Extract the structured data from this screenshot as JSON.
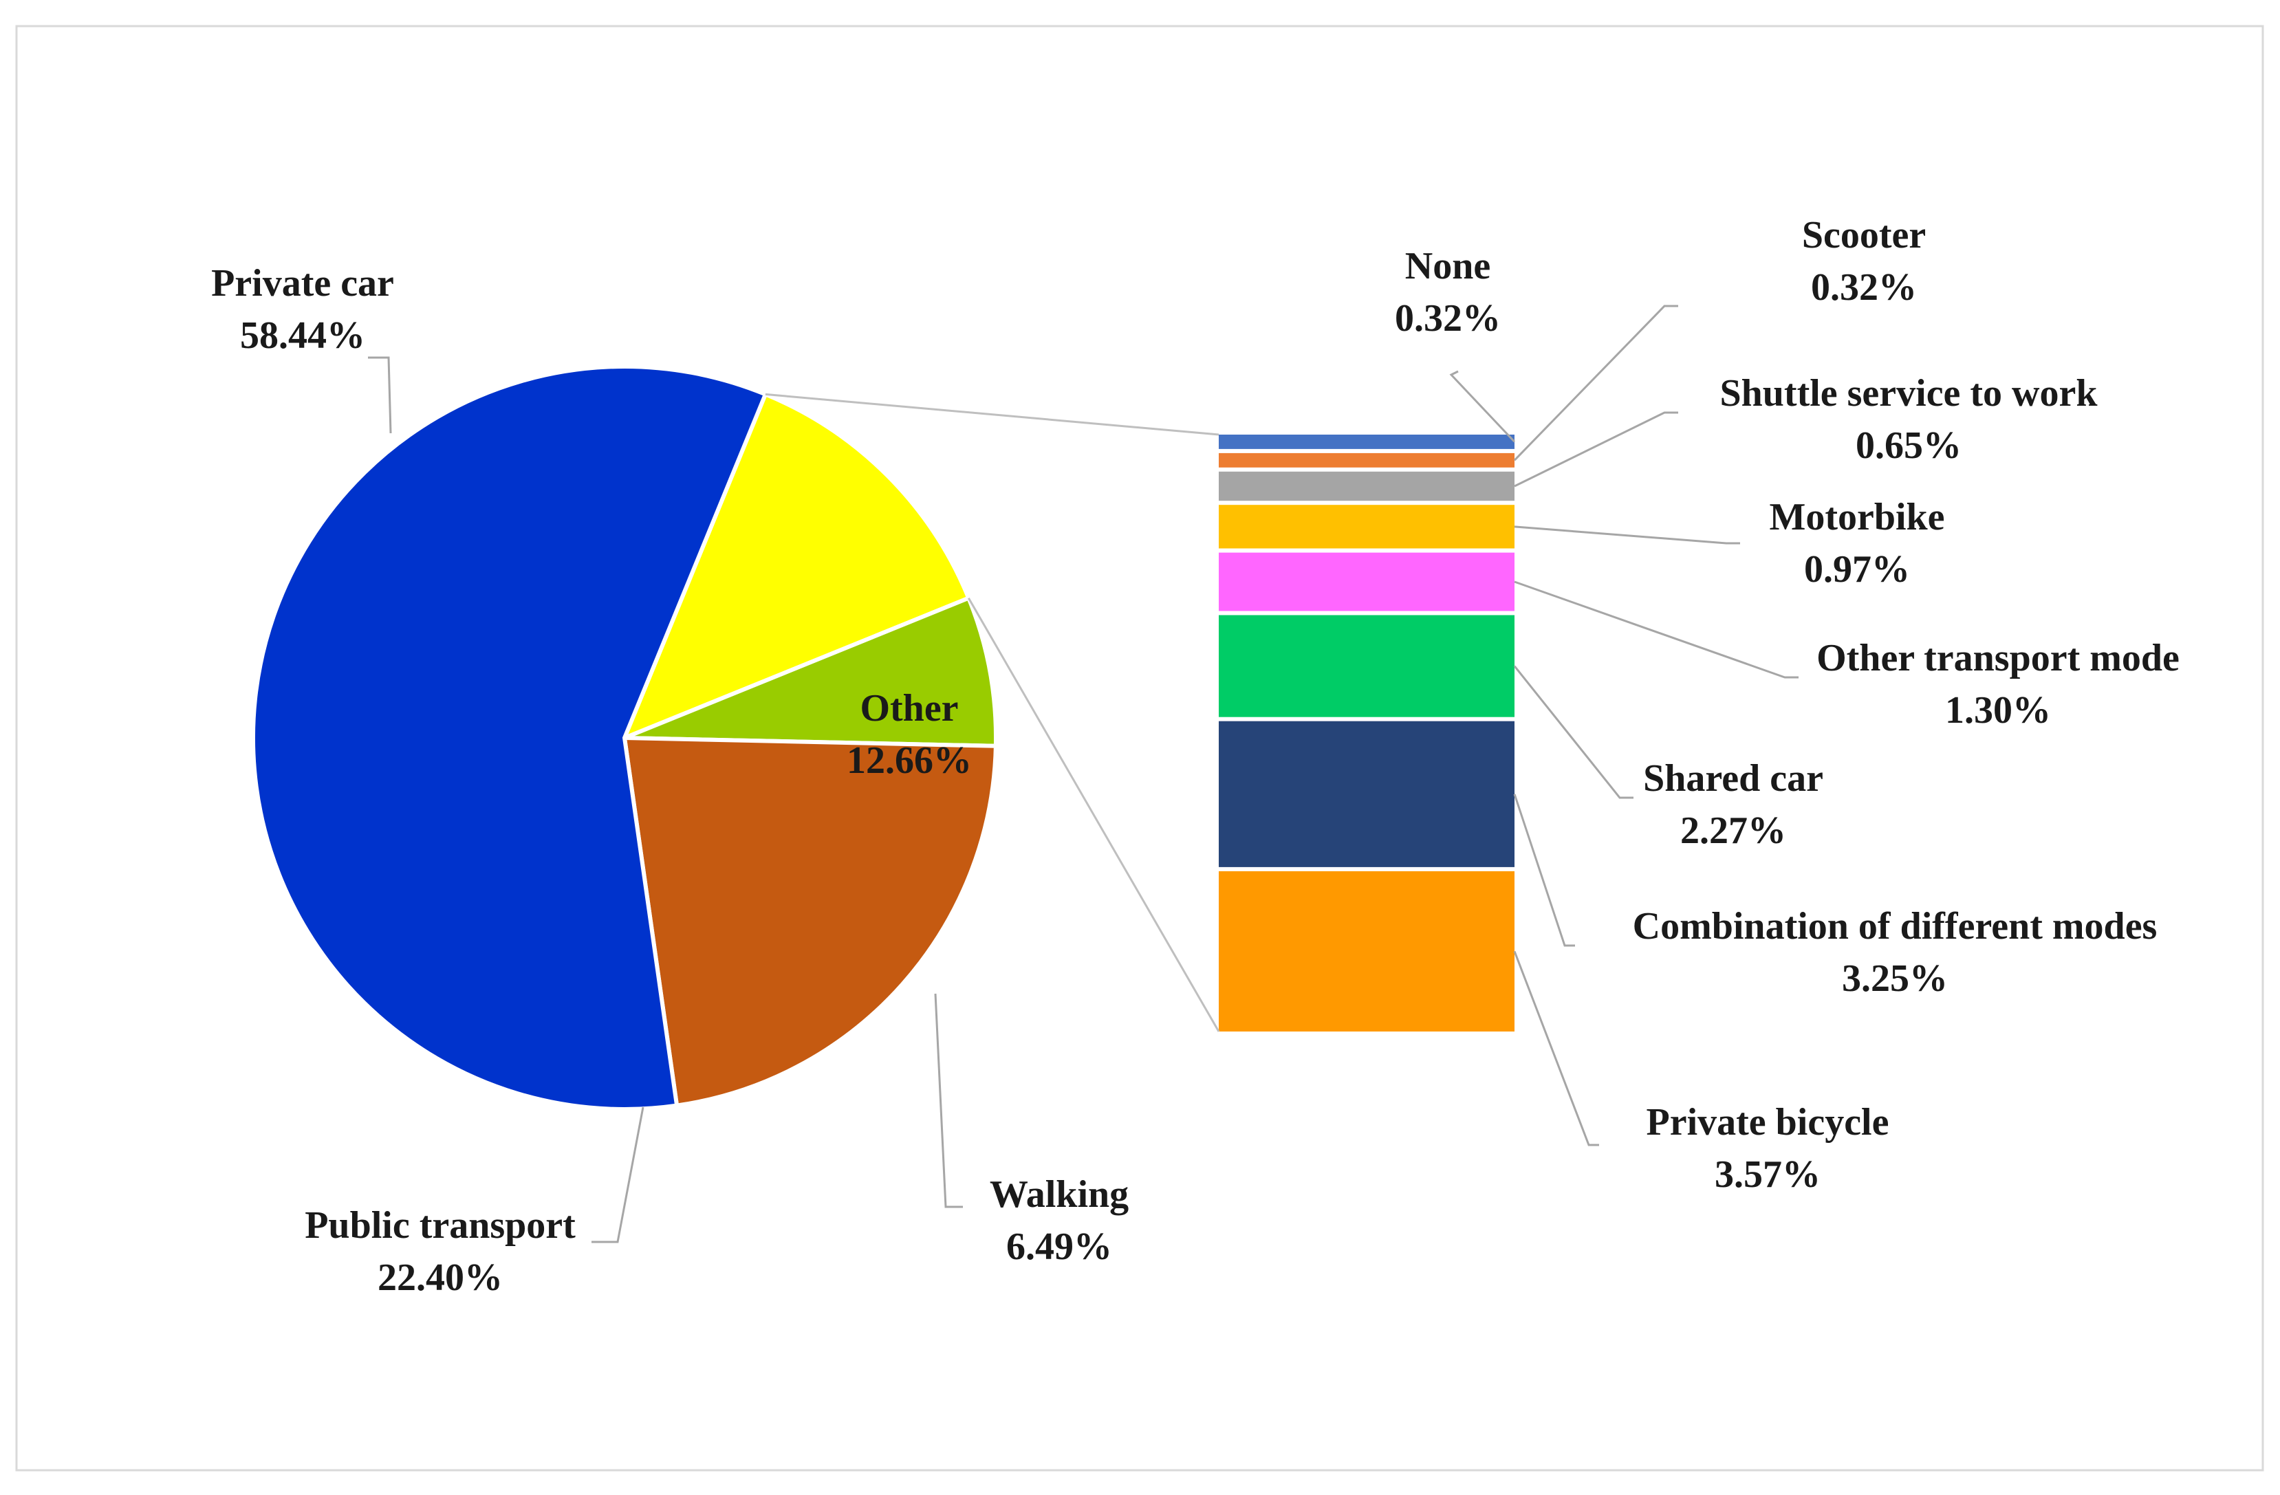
{
  "chart_data": {
    "type": "bar-of-pie",
    "pie": {
      "slices": [
        {
          "label": "Private car",
          "value": 58.44,
          "value_text": "58.44%",
          "color": "#0033cc"
        },
        {
          "label": "Public transport",
          "value": 22.4,
          "value_text": "22.40%",
          "color": "#c55a11"
        },
        {
          "label": "Walking",
          "value": 6.49,
          "value_text": "6.49%",
          "color": "#99cc00"
        },
        {
          "label": "Other",
          "value": 12.66,
          "value_text": "12.66%",
          "color": "#ffff00"
        }
      ]
    },
    "bar": {
      "segments": [
        {
          "label": "None",
          "value": 0.32,
          "value_text": "0.32%",
          "color": "#4472c4"
        },
        {
          "label": "Scooter",
          "value": 0.32,
          "value_text": "0.32%",
          "color": "#ed7d31"
        },
        {
          "label": "Shuttle service to work",
          "value": 0.65,
          "value_text": "0.65%",
          "color": "#a5a5a5"
        },
        {
          "label": "Motorbike",
          "value": 0.97,
          "value_text": "0.97%",
          "color": "#ffc000"
        },
        {
          "label": "Other transport mode",
          "value": 1.3,
          "value_text": "1.30%",
          "color": "#ff66ff"
        },
        {
          "label": "Shared car",
          "value": 2.27,
          "value_text": "2.27%",
          "color": "#00cc66"
        },
        {
          "label": "Combination of different modes",
          "value": 3.25,
          "value_text": "3.25%",
          "color": "#264478"
        },
        {
          "label": "Private bicycle",
          "value": 3.57,
          "value_text": "3.57%",
          "color": "#ff9900"
        }
      ]
    },
    "grid": false,
    "legend": "none"
  }
}
